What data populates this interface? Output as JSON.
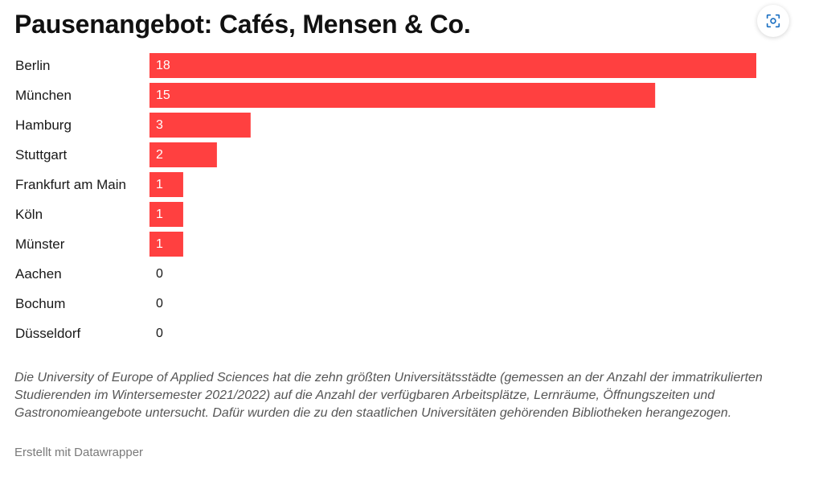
{
  "title": "Pausenangebot: Cafés, Mensen & Co.",
  "toolbar": {
    "camera_icon": "camera-icon"
  },
  "note": "Die University of Europe of Applied Sciences hat die zehn größten Universitätsstädte (gemessen an der Anzahl der immatrikulierten Studierenden im Wintersemester 2021/2022) auf die Anzahl der verfügbaren Arbeitsplätze, Lernräume, Öffnungszeiten und Gastronomieangebote untersucht. Dafür wurden die zu den staatlichen Universitäten gehörenden Bibliotheken herangezogen.",
  "credit": "Erstellt mit Datawrapper",
  "colors": {
    "bar": "#ff4040",
    "value_inside": "#ffffff",
    "value_outside": "#181818",
    "label": "#181818"
  },
  "chart_data": {
    "type": "bar",
    "orientation": "horizontal",
    "categories": [
      "Berlin",
      "München",
      "Hamburg",
      "Stuttgart",
      "Frankfurt am Main",
      "Köln",
      "Münster",
      "Aachen",
      "Bochum",
      "Düsseldorf"
    ],
    "values": [
      18,
      15,
      3,
      2,
      1,
      1,
      1,
      0,
      0,
      0
    ],
    "xlim": [
      0,
      18
    ],
    "grid": false,
    "legend": "none"
  }
}
